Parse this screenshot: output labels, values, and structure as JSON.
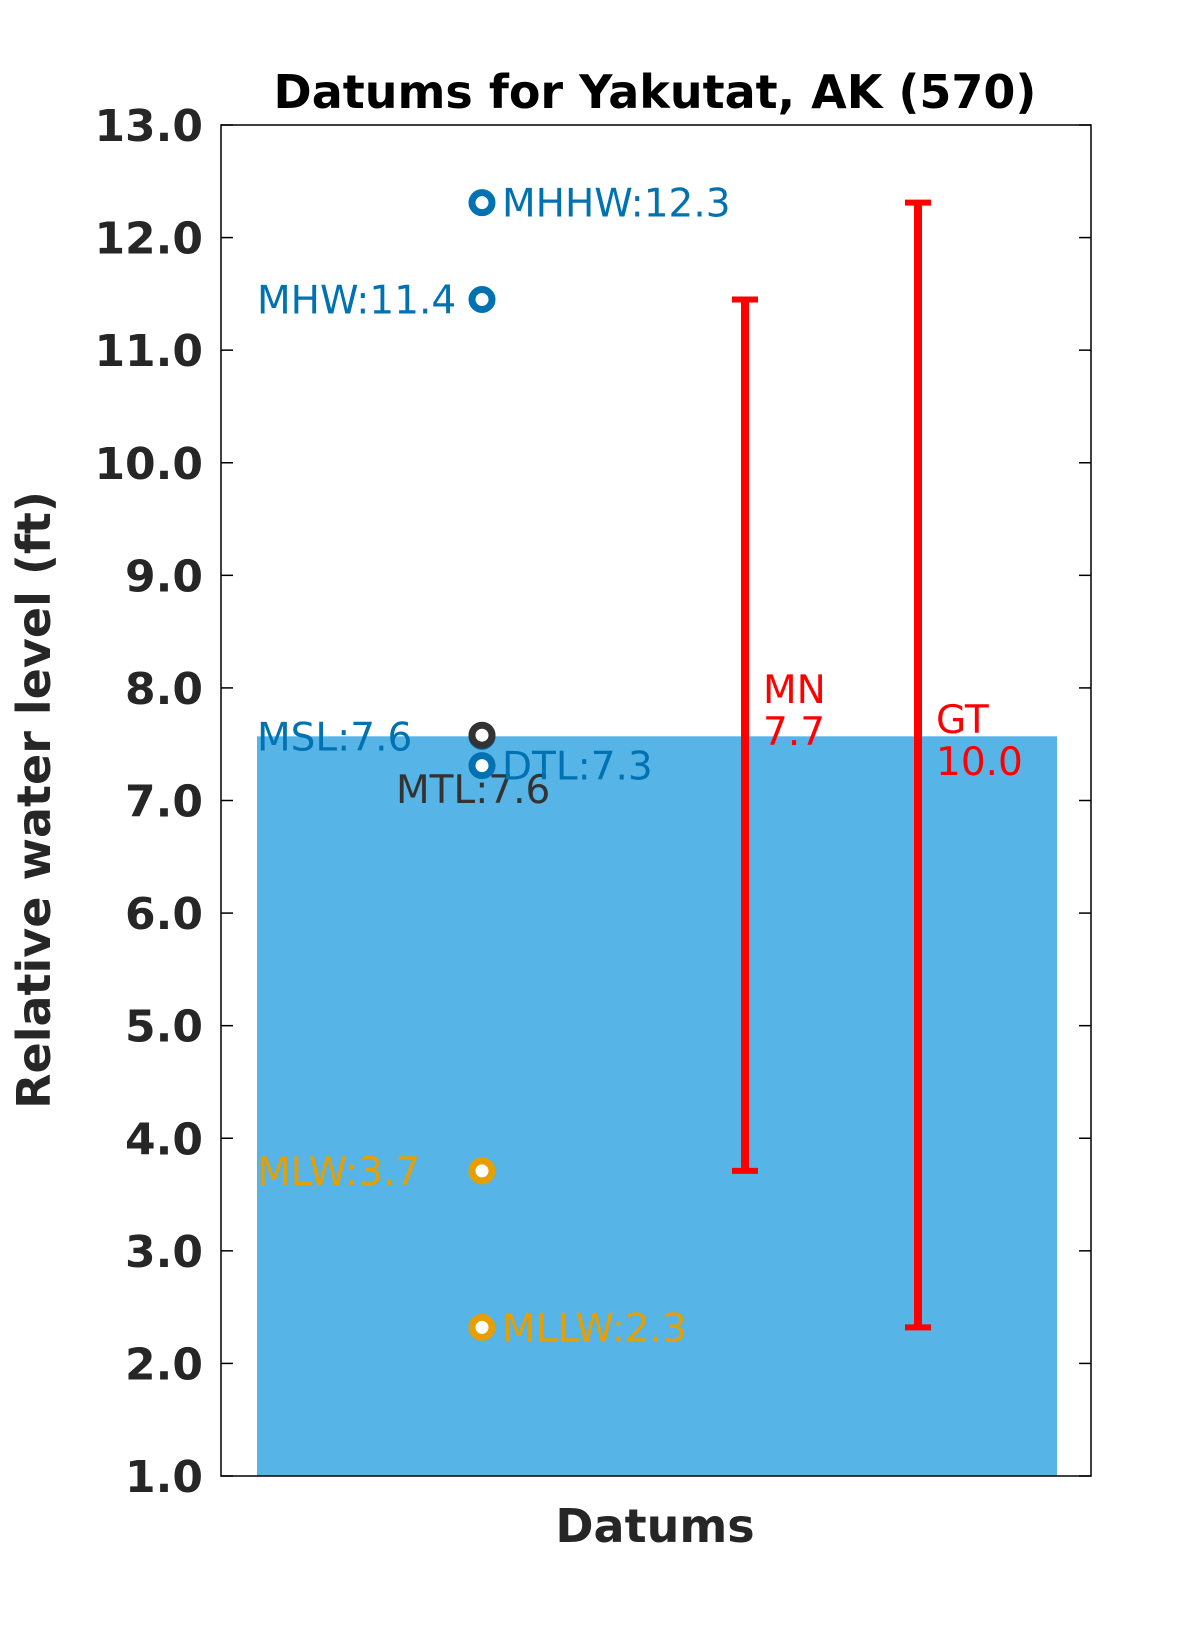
{
  "chart_data": {
    "type": "scatter",
    "title": "Datums for Yakutat, AK (570)",
    "xlabel": "Datums",
    "ylabel": "Relative water level (ft)",
    "ylim": [
      1.0,
      13.0
    ],
    "yticks": [
      "1.0",
      "2.0",
      "3.0",
      "4.0",
      "5.0",
      "6.0",
      "7.0",
      "8.0",
      "9.0",
      "10.0",
      "11.0",
      "12.0",
      "13.0"
    ],
    "grid": false,
    "legend": "none",
    "fill_level": 7.57,
    "colors": {
      "fill": "#56b4e6",
      "high": "#0072b2",
      "mid": "#333333",
      "low": "#e69f00",
      "range": "#ff0000"
    },
    "datums": [
      {
        "label": "MHHW:12.3",
        "value": 12.31,
        "color": "high",
        "anchor": "right"
      },
      {
        "label": "MHW:11.4",
        "value": 11.45,
        "color": "high",
        "anchor": "left"
      },
      {
        "label": "MSL:7.6",
        "value": 7.57,
        "color": "high",
        "anchor": "left"
      },
      {
        "label": "MTL:7.6",
        "value": 7.58,
        "color": "mid",
        "anchor": "below-left"
      },
      {
        "label": "DTL:7.3",
        "value": 7.31,
        "color": "high",
        "anchor": "right"
      },
      {
        "label": "MLW:3.7",
        "value": 3.71,
        "color": "low",
        "anchor": "left"
      },
      {
        "label": "MLLW:2.3",
        "value": 2.32,
        "color": "low",
        "anchor": "right"
      }
    ],
    "ranges": [
      {
        "name": "MN",
        "value": "7.7",
        "low": 3.71,
        "high": 11.45
      },
      {
        "name": "GT",
        "value": "10.0",
        "low": 2.32,
        "high": 12.31
      }
    ]
  }
}
